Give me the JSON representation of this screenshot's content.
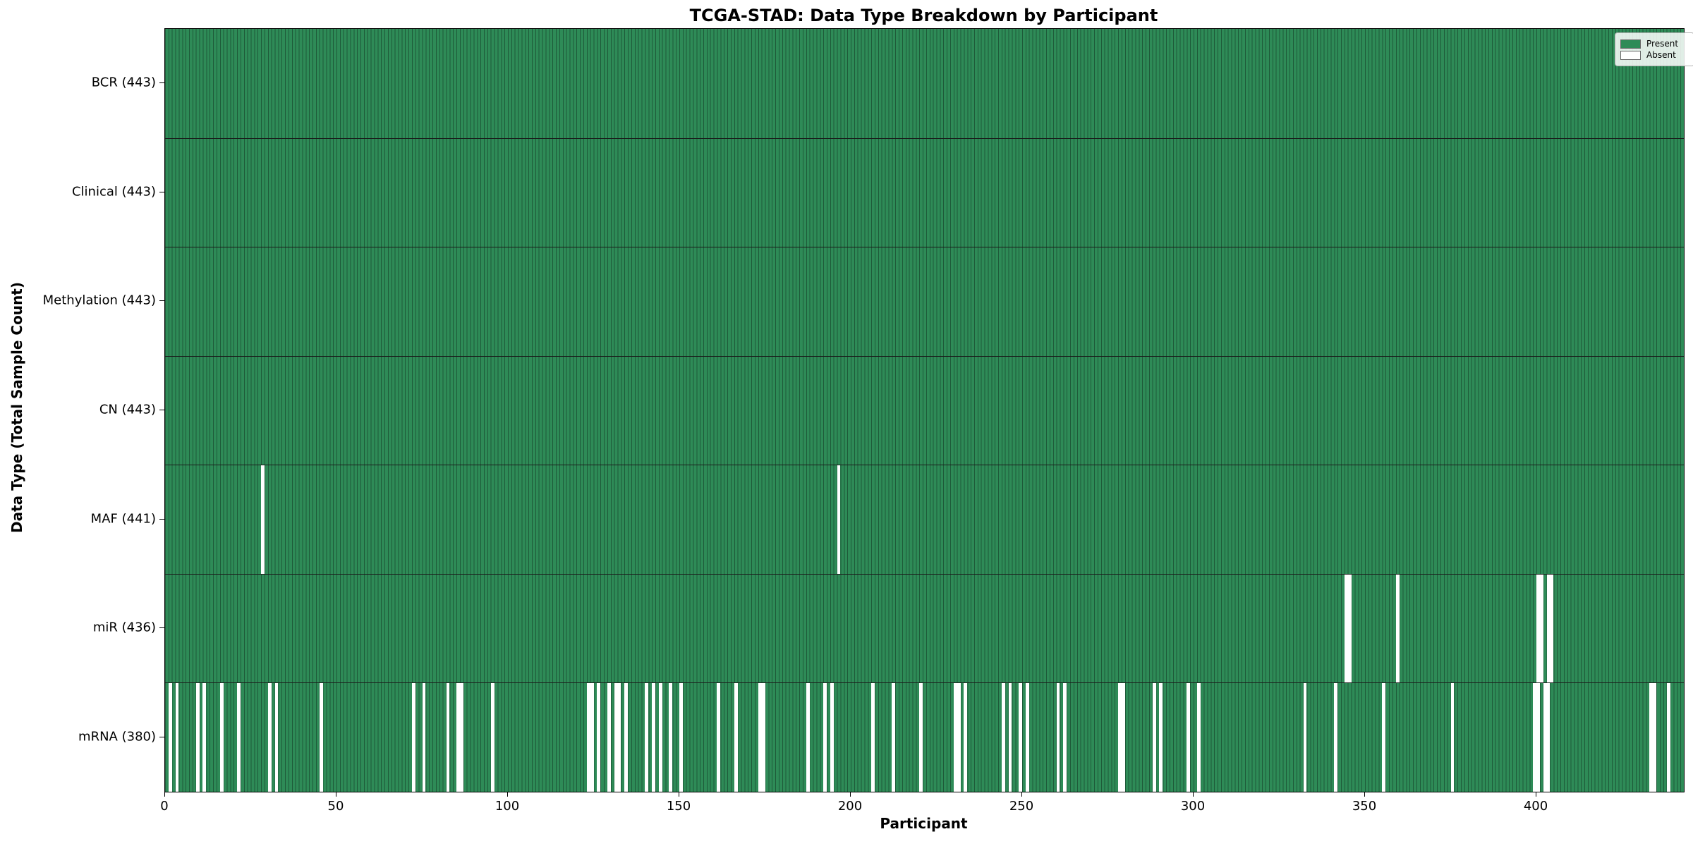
{
  "title": "TCGA-STAD: Data Type Breakdown by Participant",
  "xlabel": "Participant",
  "ylabel": "Data Type (Total Sample Count)",
  "legend": {
    "present_label": "Present",
    "absent_label": "Absent",
    "position": "upper right"
  },
  "colors": {
    "present": "#2e8b57",
    "present_edge": "#1e5a39",
    "absent": "#ffffff",
    "row_border": "#1a1a1a",
    "spine": "#000000",
    "legend_border": "#b3b3b3",
    "background": "#ffffff"
  },
  "chart_data": {
    "type": "heatmap",
    "title": "TCGA-STAD: Data Type Breakdown by Participant",
    "xlabel": "Participant",
    "ylabel": "Data Type (Total Sample Count)",
    "legend": [
      "Present",
      "Absent"
    ],
    "legend_position": "upper right",
    "grid": false,
    "n_participants": 443,
    "x_ticks": [
      0,
      50,
      100,
      150,
      200,
      250,
      300,
      350,
      400
    ],
    "x_range": [
      0,
      443
    ],
    "cell_values": {
      "present": 1,
      "absent": 0
    },
    "rows": [
      {
        "label": "BCR (443)",
        "data_type": "BCR",
        "total_sample_count": 443,
        "absent_participants": []
      },
      {
        "label": "Clinical (443)",
        "data_type": "Clinical",
        "total_sample_count": 443,
        "absent_participants": []
      },
      {
        "label": "Methylation (443)",
        "data_type": "Methylation",
        "total_sample_count": 443,
        "absent_participants": []
      },
      {
        "label": "CN (443)",
        "data_type": "CN",
        "total_sample_count": 443,
        "absent_participants": []
      },
      {
        "label": "MAF (441)",
        "data_type": "MAF",
        "total_sample_count": 441,
        "absent_participants": [
          28,
          196
        ]
      },
      {
        "label": "miR (436)",
        "data_type": "miR",
        "total_sample_count": 436,
        "absent_participants": [
          344,
          345,
          359,
          400,
          401,
          403,
          404
        ]
      },
      {
        "label": "mRNA (380)",
        "data_type": "mRNA",
        "total_sample_count": 380,
        "absent_participants": [
          1,
          3,
          9,
          11,
          16,
          21,
          30,
          32,
          45,
          72,
          75,
          82,
          85,
          86,
          95,
          123,
          124,
          126,
          129,
          131,
          132,
          134,
          140,
          142,
          144,
          147,
          150,
          161,
          166,
          173,
          174,
          187,
          192,
          194,
          206,
          212,
          220,
          230,
          231,
          233,
          244,
          246,
          249,
          251,
          260,
          262,
          278,
          279,
          288,
          290,
          298,
          301,
          332,
          341,
          355,
          375,
          399,
          400,
          402,
          403,
          433,
          434,
          438
        ]
      }
    ]
  }
}
